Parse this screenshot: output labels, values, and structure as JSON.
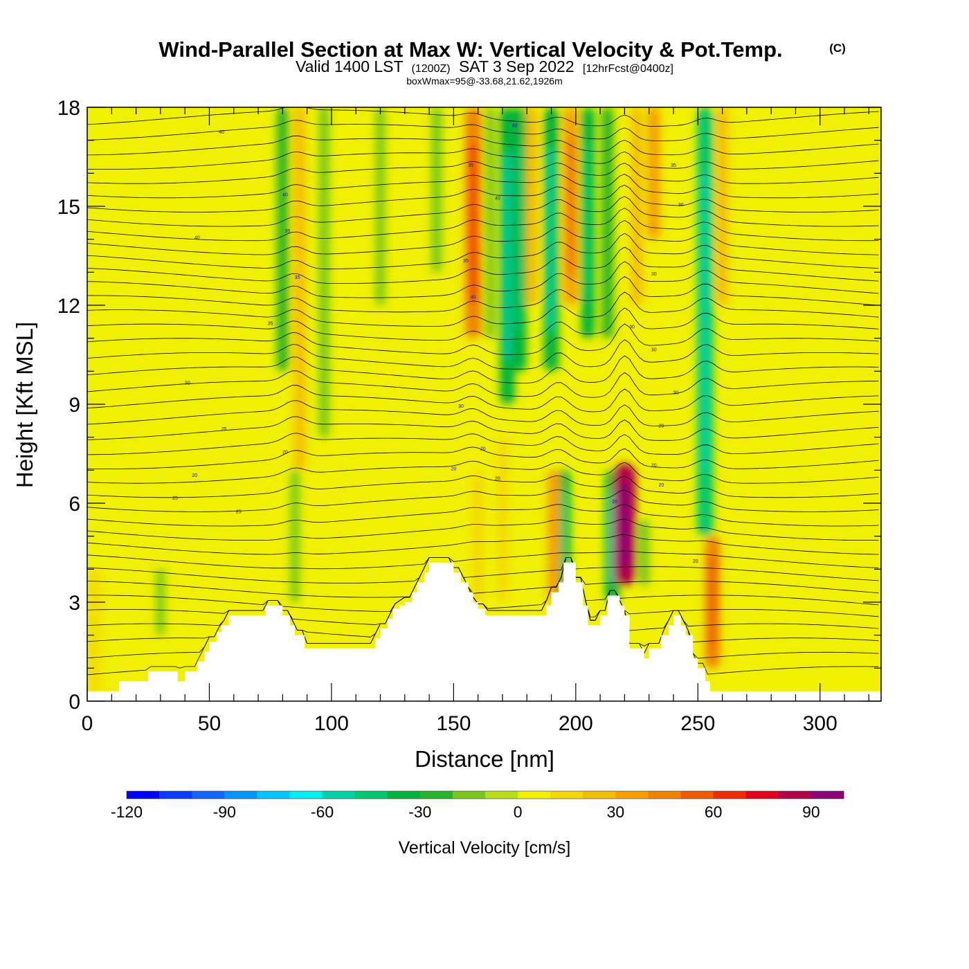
{
  "title": {
    "main": "Wind-Parallel Section at Max W: Vertical Velocity & Pot.Temp.",
    "copyright": "(C)",
    "valid_prefix": "Valid 1400 LST",
    "valid_utc": "(1200Z)",
    "valid_date": "SAT 3 Sep 2022",
    "forecast": "[12hrFcst@0400z]",
    "box_info": "boxWmax=95@-33.68,21.62,1926m"
  },
  "chart_data": {
    "type": "heatmap",
    "xlabel": "Distance [nm]",
    "ylabel": "Height [Kft MSL]",
    "xlim": [
      0,
      325
    ],
    "ylim": [
      0,
      18
    ],
    "x_ticks": [
      0,
      50,
      100,
      150,
      200,
      250,
      300
    ],
    "y_ticks": [
      0,
      3,
      6,
      9,
      12,
      15,
      18
    ],
    "x_tick_labels": [
      "0",
      "50",
      "100",
      "150",
      "200",
      "250",
      "300"
    ],
    "y_tick_labels": [
      "0",
      "3",
      "6",
      "9",
      "12",
      "15",
      "18"
    ],
    "colorbar": {
      "title": "Vertical Velocity [cm/s]",
      "min": -120,
      "max": 100,
      "step": 10,
      "labels": [
        "-120",
        "-90",
        "-60",
        "-30",
        "0",
        "30",
        "60",
        "90"
      ],
      "label_values": [
        -120,
        -90,
        -60,
        -30,
        0,
        30,
        60,
        90
      ],
      "colors": [
        "#0000ff",
        "#0a3cff",
        "#1464ff",
        "#0096ff",
        "#00c8ff",
        "#00f0f0",
        "#00d2aa",
        "#00c86e",
        "#00b43c",
        "#28b428",
        "#78c81e",
        "#b4e014",
        "#f0f000",
        "#f5d700",
        "#f5be00",
        "#f5a000",
        "#f08200",
        "#f05a00",
        "#f02800",
        "#e6001e",
        "#b4004b",
        "#8c0078"
      ]
    },
    "vertical_velocity_features": [
      {
        "x": 3,
        "z_bottom": 0.3,
        "z_top": 4,
        "w": 15
      },
      {
        "x": 30,
        "z_bottom": 2,
        "z_top": 4,
        "w": -12
      },
      {
        "x": 85,
        "z_bottom": 3,
        "z_top": 7,
        "w": -15
      },
      {
        "x": 80,
        "z_bottom": 10,
        "z_top": 18,
        "w": -25
      },
      {
        "x": 87,
        "z_bottom": 7,
        "z_top": 18,
        "w": 25
      },
      {
        "x": 97,
        "z_bottom": 8,
        "z_top": 18,
        "w": -20
      },
      {
        "x": 120,
        "z_bottom": 12,
        "z_top": 18,
        "w": -15
      },
      {
        "x": 143,
        "z_bottom": 13,
        "z_top": 18,
        "w": -20
      },
      {
        "x": 158,
        "z_bottom": 11,
        "z_top": 18,
        "w": 45
      },
      {
        "x": 165,
        "z_bottom": 11,
        "z_top": 18,
        "w": -15
      },
      {
        "x": 172,
        "z_bottom": 9,
        "z_top": 18,
        "w": -40
      },
      {
        "x": 177,
        "z_bottom": 10,
        "z_top": 18,
        "w": -35
      },
      {
        "x": 182,
        "z_bottom": 12,
        "z_top": 18,
        "w": 25
      },
      {
        "x": 190,
        "z_bottom": 10,
        "z_top": 18,
        "w": -40
      },
      {
        "x": 198,
        "z_bottom": 12,
        "z_top": 18,
        "w": 35
      },
      {
        "x": 205,
        "z_bottom": 11,
        "z_top": 18,
        "w": -35
      },
      {
        "x": 213,
        "z_bottom": 11,
        "z_top": 18,
        "w": -25
      },
      {
        "x": 225,
        "z_bottom": 12,
        "z_top": 18,
        "w": 25
      },
      {
        "x": 232,
        "z_bottom": 14,
        "z_top": 18,
        "w": 30
      },
      {
        "x": 253,
        "z_bottom": 5,
        "z_top": 18,
        "w": -45
      },
      {
        "x": 260,
        "z_bottom": 12,
        "z_top": 18,
        "w": 25
      },
      {
        "x": 195,
        "z_bottom": 3,
        "z_top": 7,
        "w": -35
      },
      {
        "x": 191,
        "z_bottom": 3,
        "z_top": 7,
        "w": 30
      },
      {
        "x": 215,
        "z_bottom": 3,
        "z_top": 7,
        "w": -40
      },
      {
        "x": 220,
        "z_bottom": 3.5,
        "z_top": 7.2,
        "w": 80
      },
      {
        "x": 228,
        "z_bottom": 3.5,
        "z_top": 5.5,
        "w": -20
      },
      {
        "x": 256,
        "z_bottom": 1,
        "z_top": 5,
        "w": 40
      },
      {
        "x": 160,
        "z_bottom": 3,
        "z_top": 7,
        "w": 15
      },
      {
        "x": 170,
        "z_bottom": 3,
        "z_top": 8,
        "w": 10
      }
    ],
    "terrain_kft": {
      "x": [
        0,
        10,
        13,
        23,
        25,
        35,
        37,
        40,
        45,
        48,
        50,
        53,
        55,
        58,
        60,
        70,
        73,
        78,
        80,
        83,
        85,
        89,
        95,
        105,
        115,
        118,
        120,
        123,
        125,
        128,
        130,
        133,
        135,
        138,
        140,
        143,
        145,
        150,
        153,
        156,
        158,
        160,
        163,
        165,
        168,
        170,
        175,
        180,
        185,
        188,
        190,
        193,
        195,
        198,
        200,
        203,
        205,
        208,
        210,
        213,
        215,
        218,
        220,
        222,
        225,
        228,
        230,
        233,
        235,
        238,
        240,
        243,
        245,
        248,
        250,
        253,
        255,
        258,
        260,
        263,
        270,
        280,
        300,
        325
      ],
      "z": [
        0.3,
        0.3,
        0.6,
        0.6,
        0.9,
        0.9,
        0.6,
        0.9,
        1.2,
        1.5,
        1.8,
        2.1,
        2.3,
        2.6,
        2.6,
        2.6,
        2.9,
        2.9,
        2.6,
        2.3,
        2.0,
        1.6,
        1.6,
        1.6,
        1.6,
        1.9,
        2.2,
        2.5,
        2.8,
        2.9,
        3.0,
        3.3,
        3.6,
        3.9,
        4.2,
        4.2,
        4.2,
        3.9,
        3.6,
        3.3,
        3.0,
        2.8,
        2.6,
        2.6,
        2.6,
        2.6,
        2.6,
        2.6,
        2.6,
        2.9,
        3.3,
        3.6,
        4.2,
        4.2,
        3.6,
        2.9,
        2.3,
        2.3,
        2.6,
        3.2,
        3.2,
        2.9,
        2.6,
        1.6,
        1.6,
        1.3,
        1.6,
        1.6,
        2.0,
        2.3,
        2.6,
        2.3,
        2.0,
        1.3,
        1.0,
        0.6,
        0.3,
        0.3,
        0.3,
        0.3,
        0.3,
        0.3,
        0.3,
        0.3
      ]
    },
    "pot_temp_contours": {
      "count": 40,
      "labels": [
        "40",
        "40",
        "35",
        "40",
        "40",
        "40",
        "35",
        "35",
        "35",
        "40",
        "35",
        "35",
        "30",
        "30",
        "30",
        "30",
        "30",
        "30",
        "30",
        "25",
        "20",
        "20",
        "20",
        "20",
        "20",
        "20",
        "20",
        "20",
        "20",
        "25",
        "25",
        "20"
      ],
      "label_positions": [
        [
          55,
          17.2
        ],
        [
          81,
          15.3
        ],
        [
          82,
          14.2
        ],
        [
          45,
          14.0
        ],
        [
          168,
          15.2
        ],
        [
          175,
          17.4
        ],
        [
          157,
          16.2
        ],
        [
          86,
          12.8
        ],
        [
          155,
          13.3
        ],
        [
          158,
          12.2
        ],
        [
          75,
          11.4
        ],
        [
          240,
          16.2
        ],
        [
          243,
          15.0
        ],
        [
          232,
          12.9
        ],
        [
          223,
          11.3
        ],
        [
          232,
          10.6
        ],
        [
          41,
          9.6
        ],
        [
          153,
          8.9
        ],
        [
          241,
          9.3
        ],
        [
          56,
          8.2
        ],
        [
          81,
          7.5
        ],
        [
          235,
          8.3
        ],
        [
          232,
          7.1
        ],
        [
          162,
          7.6
        ],
        [
          150,
          7.0
        ],
        [
          168,
          6.7
        ],
        [
          216,
          6.0
        ],
        [
          235,
          6.5
        ],
        [
          44,
          6.8
        ],
        [
          36,
          6.1
        ],
        [
          62,
          5.7
        ],
        [
          249,
          4.2
        ]
      ]
    }
  }
}
